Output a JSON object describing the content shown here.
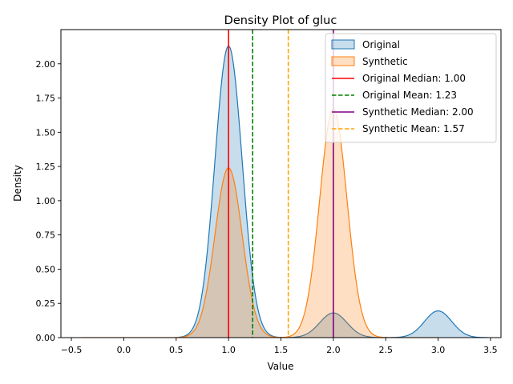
{
  "chart_data": {
    "type": "area",
    "title": "Density Plot of gluc",
    "xlabel": "Value",
    "ylabel": "Density",
    "xlim": [
      -0.6,
      3.6
    ],
    "ylim": [
      0,
      2.25
    ],
    "x_ticks": [
      -0.5,
      0.0,
      0.5,
      1.0,
      1.5,
      2.0,
      2.5,
      3.0,
      3.5
    ],
    "x_tick_labels": [
      "−0.5",
      "0.0",
      "0.5",
      "1.0",
      "1.5",
      "2.0",
      "2.5",
      "3.0",
      "3.5"
    ],
    "y_ticks": [
      0,
      0.25,
      0.5,
      0.75,
      1.0,
      1.25,
      1.5,
      1.75,
      2.0
    ],
    "y_tick_labels": [
      "0.00",
      "0.25",
      "0.50",
      "0.75",
      "1.00",
      "1.25",
      "1.50",
      "1.75",
      "2.00"
    ],
    "grid": false,
    "legend_position": "top-right",
    "series": [
      {
        "name": "Original",
        "color": "#1f77b4",
        "x_range": [
          0.52,
          3.48
        ],
        "components": [
          {
            "mean": 1.0,
            "sd": 0.13,
            "peak": 2.13
          },
          {
            "mean": 2.0,
            "sd": 0.13,
            "peak": 0.18
          },
          {
            "mean": 3.0,
            "sd": 0.13,
            "peak": 0.195
          }
        ]
      },
      {
        "name": "Synthetic",
        "color": "#ff7f0e",
        "x_range": [
          -0.4,
          3.0
        ],
        "components": [
          {
            "mean": 1.0,
            "sd": 0.13,
            "peak": 1.24
          },
          {
            "mean": 2.0,
            "sd": 0.13,
            "peak": 1.67
          }
        ]
      }
    ],
    "reference_lines": [
      {
        "label": "Original Median: 1.00",
        "value": 1.0,
        "color": "#ff0000",
        "style": "solid"
      },
      {
        "label": "Original Mean: 1.23",
        "value": 1.23,
        "color": "#008000",
        "style": "dashed"
      },
      {
        "label": "Synthetic Median: 2.00",
        "value": 2.0,
        "color": "#800080",
        "style": "solid"
      },
      {
        "label": "Synthetic Mean: 1.57",
        "value": 1.57,
        "color": "#ffa500",
        "style": "dashed"
      }
    ]
  }
}
